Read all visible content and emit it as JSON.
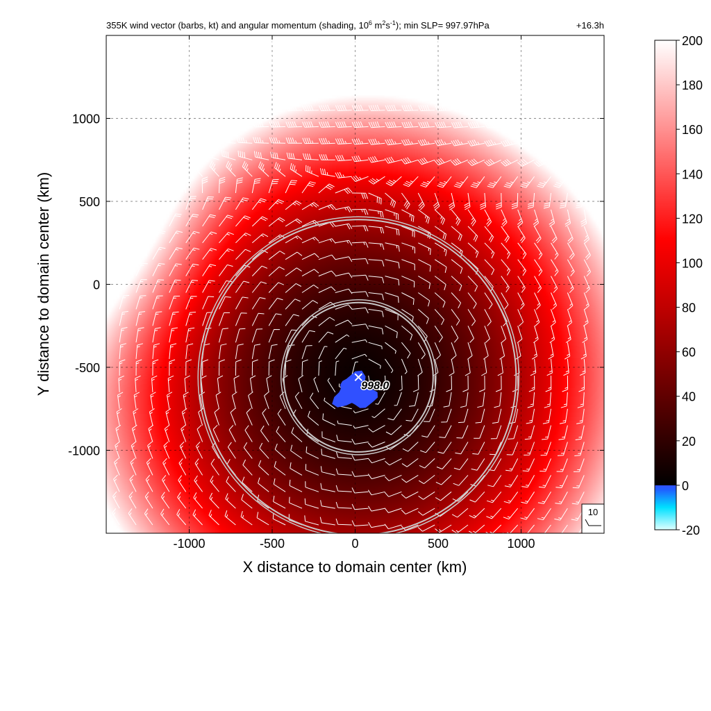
{
  "chart_data": {
    "type": "heatmap",
    "title_parts": {
      "prefix": "355K wind vector (barbs, kt) and angular momentum (shading, 10",
      "exp1": "6",
      "mid1": " m",
      "exp2": "2",
      "mid2": "s",
      "exp3": "-1",
      "suffix": "); min SLP= 997.97hPa"
    },
    "time_label": "+16.3h",
    "xlabel": "X distance to domain center (km)",
    "ylabel": "Y distance to domain center (km)",
    "xlim": [
      -1500,
      1500
    ],
    "ylim": [
      -1500,
      1500
    ],
    "x_ticks": [
      "-1000",
      "-500",
      "0",
      "500",
      "1000"
    ],
    "x_tick_values": [
      -1000,
      -500,
      0,
      500,
      1000
    ],
    "y_ticks": [
      "1000",
      "500",
      "0",
      "-500",
      "-1000"
    ],
    "y_tick_values": [
      1000,
      500,
      0,
      -500,
      -1000
    ],
    "grid": true,
    "center": {
      "x": 20,
      "y": -560
    },
    "ring_radii_km": [
      450,
      950
    ],
    "min_slp_label": "998.0",
    "reference_barb_label": "10",
    "colorbar": {
      "range": [
        -20,
        200
      ],
      "tick_labels": [
        "200",
        "180",
        "160",
        "140",
        "120",
        "100",
        "80",
        "60",
        "40",
        "20",
        "0",
        "-20"
      ],
      "tick_values": [
        200,
        180,
        160,
        140,
        120,
        100,
        80,
        60,
        40,
        20,
        0,
        -20
      ],
      "stops": [
        {
          "v": -20,
          "color": "#e0ffff"
        },
        {
          "v": -10,
          "color": "#00e0ff"
        },
        {
          "v": -2,
          "color": "#2060ff"
        },
        {
          "v": 0,
          "color": "#3050ff"
        },
        {
          "v": 0.01,
          "color": "#000000"
        },
        {
          "v": 40,
          "color": "#600000"
        },
        {
          "v": 80,
          "color": "#c00000"
        },
        {
          "v": 110,
          "color": "#ff0000"
        },
        {
          "v": 160,
          "color": "#ff9090"
        },
        {
          "v": 200,
          "color": "#ffffff"
        }
      ]
    }
  }
}
